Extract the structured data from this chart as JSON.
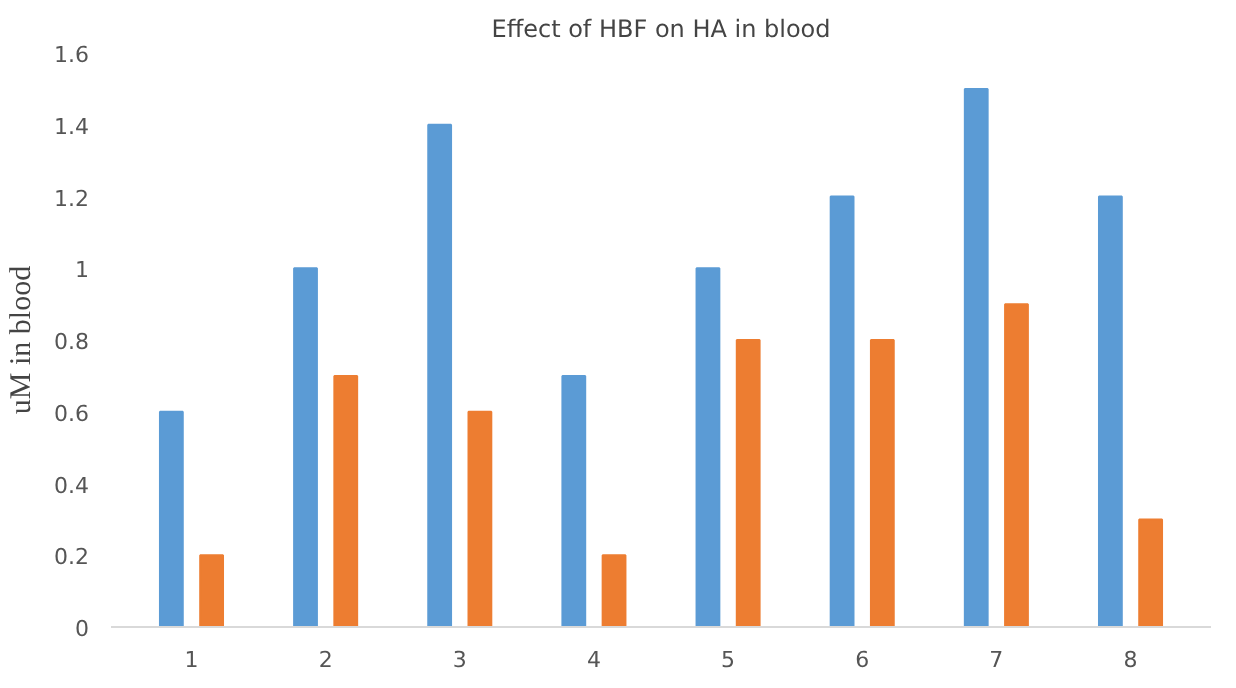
{
  "chart_data": {
    "type": "bar",
    "title": "Effect of HBF on HA in blood",
    "ylabel": "uM in blood",
    "categories": [
      "1",
      "2",
      "3",
      "4",
      "5",
      "6",
      "7",
      "8"
    ],
    "series": [
      {
        "color": "#5b9bd5",
        "values": [
          0.6,
          1.0,
          1.4,
          0.7,
          1.0,
          1.2,
          1.5,
          1.2
        ]
      },
      {
        "color": "#ed7d31",
        "values": [
          0.2,
          0.7,
          0.6,
          0.2,
          0.8,
          0.8,
          0.9,
          0.3
        ]
      }
    ],
    "ylim": [
      0,
      1.6
    ],
    "yticks": [
      0,
      0.2,
      0.4,
      0.6,
      0.8,
      1,
      1.2,
      1.4,
      1.6
    ],
    "grid": false
  }
}
